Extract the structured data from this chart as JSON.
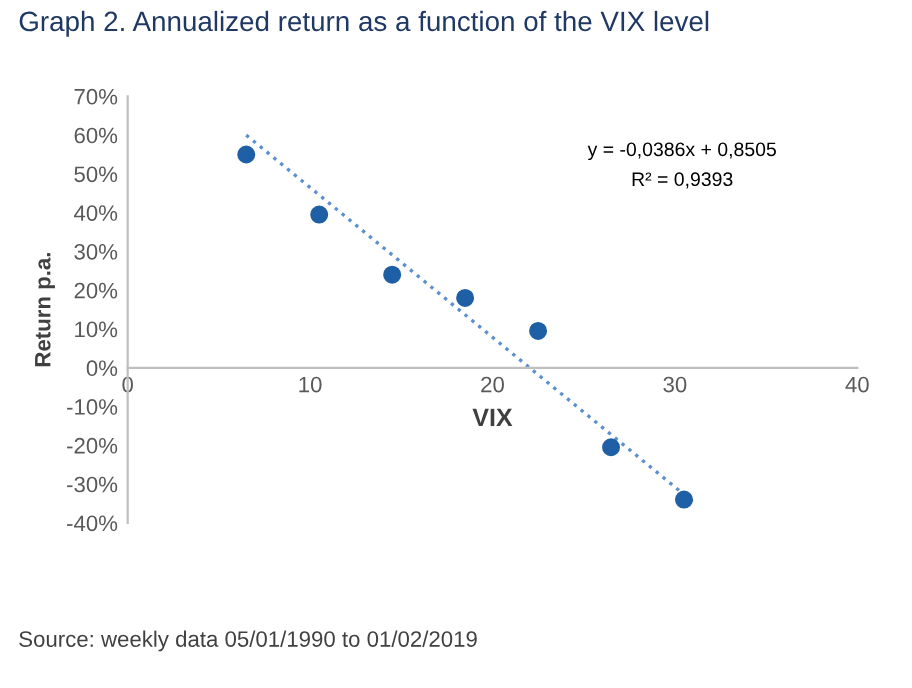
{
  "chart_data": {
    "type": "scatter",
    "title": "Graph 2. Annualized return as a function of the VIX level",
    "xlabel": "VIX",
    "ylabel": "Return p.a.",
    "xlim": [
      0,
      40
    ],
    "xticks": [
      0,
      10,
      20,
      30,
      40
    ],
    "ylim": [
      -40,
      70
    ],
    "yticks": [
      {
        "value": -40,
        "label": "-40%"
      },
      {
        "value": -30,
        "label": "-30%"
      },
      {
        "value": -20,
        "label": "-20%"
      },
      {
        "value": -10,
        "label": "-10%"
      },
      {
        "value": 0,
        "label": "0%"
      },
      {
        "value": 10,
        "label": "10%"
      },
      {
        "value": 20,
        "label": "20%"
      },
      {
        "value": 30,
        "label": "30%"
      },
      {
        "value": 40,
        "label": "40%"
      },
      {
        "value": 50,
        "label": "50%"
      },
      {
        "value": 60,
        "label": "60%"
      },
      {
        "value": 70,
        "label": "70%"
      }
    ],
    "grid": false,
    "legend": false,
    "marker": "circle",
    "series": [
      {
        "color": "#1f5fa6",
        "x": [
          6.5,
          10.5,
          14.5,
          18.5,
          22.5,
          26.5,
          30.5
        ],
        "values": [
          55,
          39.5,
          24,
          18,
          9.5,
          -20.5,
          -34
        ]
      },
      {
        "type": "line",
        "color": "#5b8fd0",
        "line_style": "dotted",
        "marker": "none",
        "x": [
          6.5,
          31
        ],
        "values": [
          60,
          -34.6
        ]
      }
    ],
    "annotations": [
      "y = -0,0386x + 0,8505",
      "R² = 0,9393",
      "Source: weekly data 05/01/1990 to 01/02/2019"
    ]
  }
}
